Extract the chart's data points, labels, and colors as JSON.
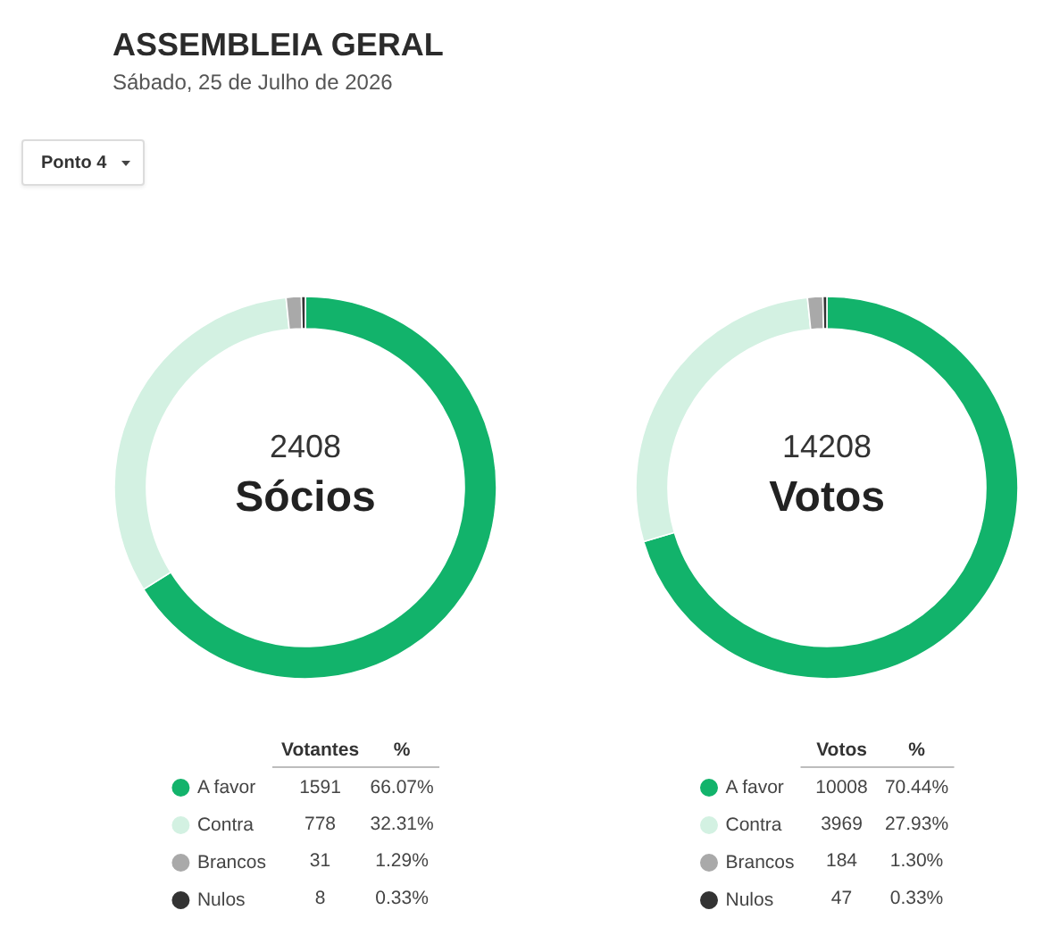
{
  "chart_data": [
    {
      "type": "other",
      "title": "ASSEMBLEIA GERAL",
      "subtitle": "Sábado, 25 de Julho de 2026",
      "annotations": [
        "Ponto 4"
      ]
    },
    {
      "type": "donut",
      "title": "Sócios",
      "totals": [
        "2408"
      ],
      "categories": [
        "A favor",
        "Contra",
        "Brancos",
        "Nulos"
      ],
      "values": [
        1591,
        778,
        31,
        8
      ],
      "data_labels": true,
      "colors": [
        "#12b36b",
        "#d3f1e2",
        "#a9a9a9",
        "#333333"
      ],
      "legend": "bottom",
      "annotations": [
        "Votantes",
        "%",
        "66.07%",
        "32.31%",
        "1.29%",
        "0.33%"
      ]
    },
    {
      "type": "donut",
      "title": "Votos",
      "totals": [
        "14208"
      ],
      "categories": [
        "A favor",
        "Contra",
        "Brancos",
        "Nulos"
      ],
      "values": [
        10008,
        3969,
        184,
        47
      ],
      "data_labels": true,
      "colors": [
        "#12b36b",
        "#d3f1e2",
        "#a9a9a9",
        "#333333"
      ],
      "legend": "bottom",
      "annotations": [
        "Votos",
        "%",
        "70.44%",
        "27.93%",
        "1.30%",
        "0.33%"
      ]
    }
  ]
}
